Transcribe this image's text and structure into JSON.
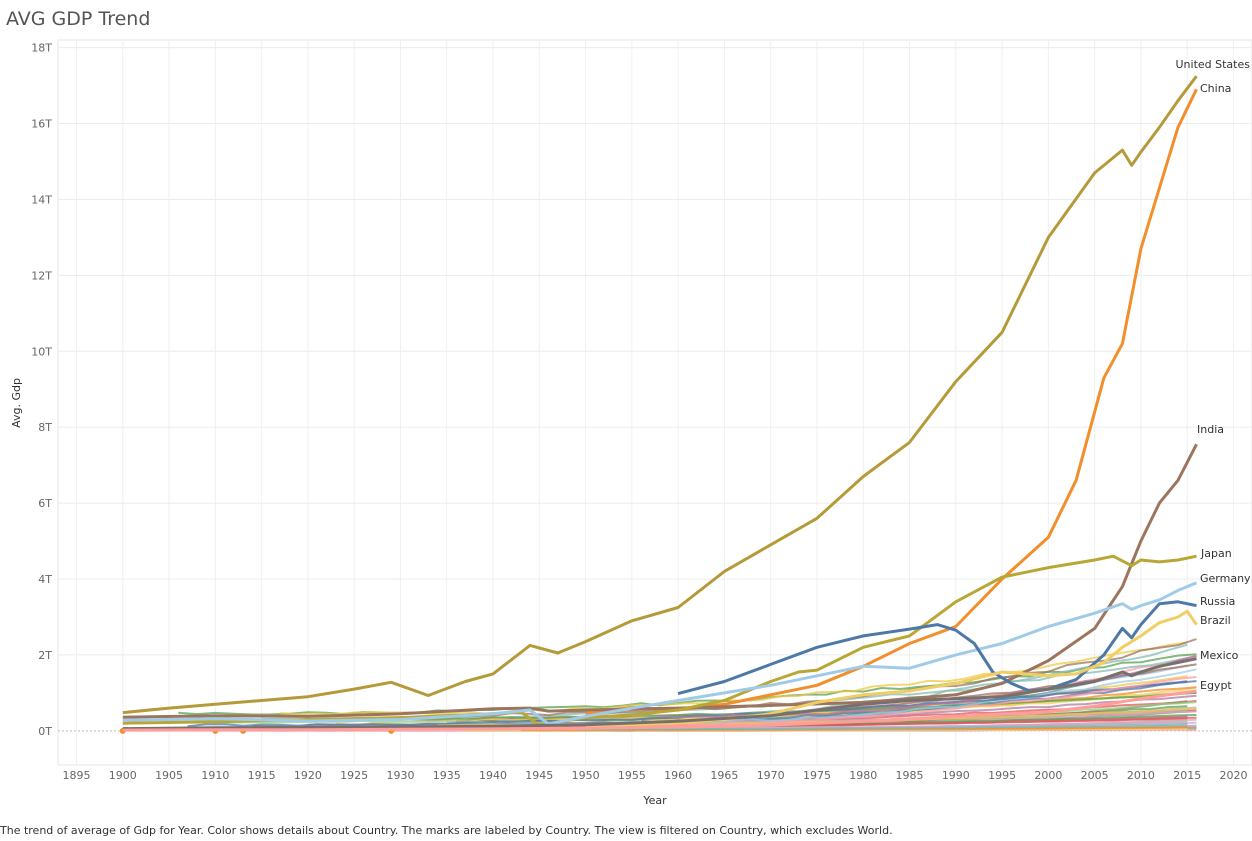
{
  "title": "AVG GDP Trend",
  "caption": "The trend of average of Gdp for Year.  Color shows details about Country.  The marks are labeled by Country. The view is filtered on Country, which excludes World.",
  "colors": {
    "United States": "#b59a3a",
    "China": "#f28e2b",
    "India": "#9c755f",
    "Japan": "#b8a635",
    "Germany": "#a0cbe8",
    "Russia": "#4e79a7",
    "Brazil": "#f1ce63",
    "Mexico": "#79706e",
    "Egypt": "#ff9d9a"
  },
  "chart_data": {
    "type": "line",
    "title": "AVG GDP Trend",
    "xlabel": "Year",
    "ylabel": "Avg. Gdp",
    "xlim": [
      1893,
      2022
    ],
    "ylim": [
      -0.9,
      18.2
    ],
    "y_unit": "T",
    "x_ticks": [
      1895,
      1900,
      1905,
      1910,
      1915,
      1920,
      1925,
      1930,
      1935,
      1940,
      1945,
      1950,
      1955,
      1960,
      1965,
      1970,
      1975,
      1980,
      1985,
      1990,
      1995,
      2000,
      2005,
      2010,
      2015,
      2020
    ],
    "y_ticks": [
      0,
      2,
      4,
      6,
      8,
      10,
      12,
      14,
      16,
      18
    ],
    "y_tick_labels": [
      "0T",
      "2T",
      "4T",
      "6T",
      "8T",
      "10T",
      "12T",
      "14T",
      "16T",
      "18T"
    ],
    "grid": true,
    "legend": "none",
    "series": [
      {
        "name": "United States",
        "x": [
          1900,
          1905,
          1910,
          1915,
          1920,
          1925,
          1929,
          1933,
          1937,
          1940,
          1944,
          1947,
          1950,
          1955,
          1960,
          1965,
          1970,
          1975,
          1980,
          1985,
          1990,
          1995,
          2000,
          2005,
          2008,
          2009,
          2010,
          2012,
          2014,
          2016
        ],
        "y": [
          0.48,
          0.6,
          0.7,
          0.8,
          0.9,
          1.1,
          1.28,
          0.93,
          1.3,
          1.5,
          2.25,
          2.05,
          2.35,
          2.9,
          3.25,
          4.2,
          4.9,
          5.6,
          6.7,
          7.6,
          9.2,
          10.5,
          13.0,
          14.7,
          15.3,
          14.9,
          15.25,
          15.9,
          16.6,
          17.25
        ]
      },
      {
        "name": "China",
        "x": [
          1950,
          1955,
          1960,
          1965,
          1970,
          1975,
          1980,
          1985,
          1990,
          1995,
          2000,
          2003,
          2006,
          2008,
          2010,
          2012,
          2014,
          2016
        ],
        "y": [
          0.45,
          0.62,
          0.55,
          0.7,
          0.95,
          1.2,
          1.7,
          2.3,
          2.75,
          4.0,
          5.1,
          6.6,
          9.3,
          10.2,
          12.7,
          14.3,
          15.9,
          16.9
        ]
      },
      {
        "name": "India",
        "x": [
          1900,
          1910,
          1920,
          1930,
          1940,
          1944,
          1946,
          1950,
          1960,
          1970,
          1980,
          1990,
          1995,
          2000,
          2005,
          2008,
          2010,
          2012,
          2014,
          2016
        ],
        "y": [
          0.36,
          0.4,
          0.38,
          0.45,
          0.58,
          0.6,
          0.52,
          0.55,
          0.6,
          0.67,
          0.75,
          0.95,
          1.25,
          1.85,
          2.7,
          3.8,
          5.0,
          6.0,
          6.6,
          7.55
        ]
      },
      {
        "name": "Japan",
        "x": [
          1900,
          1910,
          1920,
          1930,
          1940,
          1943,
          1945,
          1950,
          1955,
          1960,
          1965,
          1970,
          1973,
          1975,
          1980,
          1985,
          1990,
          1995,
          2000,
          2005,
          2007,
          2009,
          2010,
          2012,
          2014,
          2016
        ],
        "y": [
          0.2,
          0.24,
          0.3,
          0.35,
          0.45,
          0.5,
          0.15,
          0.35,
          0.42,
          0.55,
          0.8,
          1.3,
          1.55,
          1.6,
          2.2,
          2.5,
          3.4,
          4.05,
          4.3,
          4.5,
          4.6,
          4.35,
          4.5,
          4.45,
          4.5,
          4.6
        ]
      },
      {
        "name": "Germany",
        "x": [
          1900,
          1910,
          1920,
          1930,
          1940,
          1944,
          1946,
          1950,
          1955,
          1960,
          1965,
          1970,
          1975,
          1980,
          1985,
          1990,
          1995,
          2000,
          2005,
          2008,
          2009,
          2010,
          2012,
          2014,
          2016
        ],
        "y": [
          0.28,
          0.32,
          0.26,
          0.3,
          0.45,
          0.55,
          0.18,
          0.38,
          0.6,
          0.8,
          1.0,
          1.2,
          1.45,
          1.7,
          1.65,
          2.0,
          2.3,
          2.75,
          3.1,
          3.35,
          3.2,
          3.3,
          3.45,
          3.7,
          3.9
        ]
      },
      {
        "name": "Russia",
        "x": [
          1960,
          1965,
          1970,
          1975,
          1980,
          1985,
          1988,
          1990,
          1992,
          1994,
          1996,
          1998,
          2000,
          2003,
          2006,
          2008,
          2009,
          2010,
          2012,
          2014,
          2016
        ],
        "y": [
          0.98,
          1.3,
          1.75,
          2.2,
          2.5,
          2.68,
          2.8,
          2.65,
          2.3,
          1.55,
          1.25,
          1.05,
          1.1,
          1.35,
          2.0,
          2.7,
          2.45,
          2.8,
          3.35,
          3.4,
          3.3
        ]
      },
      {
        "name": "Brazil",
        "x": [
          1950,
          1955,
          1960,
          1965,
          1970,
          1975,
          1980,
          1985,
          1990,
          1995,
          2000,
          2003,
          2006,
          2008,
          2010,
          2012,
          2014,
          2015,
          2016
        ],
        "y": [
          0.12,
          0.16,
          0.22,
          0.3,
          0.45,
          0.75,
          0.95,
          1.05,
          1.25,
          1.55,
          1.45,
          1.5,
          1.8,
          2.2,
          2.5,
          2.85,
          3.0,
          3.15,
          2.8
        ]
      },
      {
        "name": "Mexico",
        "x": [
          1900,
          1910,
          1920,
          1930,
          1940,
          1950,
          1960,
          1970,
          1980,
          1985,
          1990,
          1995,
          2000,
          2005,
          2008,
          2009,
          2010,
          2012,
          2014,
          2016
        ],
        "y": [
          0.06,
          0.08,
          0.09,
          0.1,
          0.12,
          0.16,
          0.25,
          0.4,
          0.7,
          0.8,
          0.85,
          0.9,
          1.1,
          1.3,
          1.55,
          1.45,
          1.55,
          1.7,
          1.8,
          1.9
        ]
      },
      {
        "name": "Egypt",
        "x": [
          1900,
          1910,
          1920,
          1930,
          1940,
          1950,
          1960,
          1970,
          1980,
          1990,
          2000,
          2005,
          2010,
          2016
        ],
        "y": [
          0.02,
          0.03,
          0.03,
          0.04,
          0.05,
          0.07,
          0.1,
          0.15,
          0.25,
          0.38,
          0.5,
          0.65,
          0.85,
          1.05
        ]
      }
    ],
    "labels": [
      "United States",
      "China",
      "India",
      "Japan",
      "Germany",
      "Russia",
      "Brazil",
      "Mexico",
      "Egypt"
    ]
  }
}
